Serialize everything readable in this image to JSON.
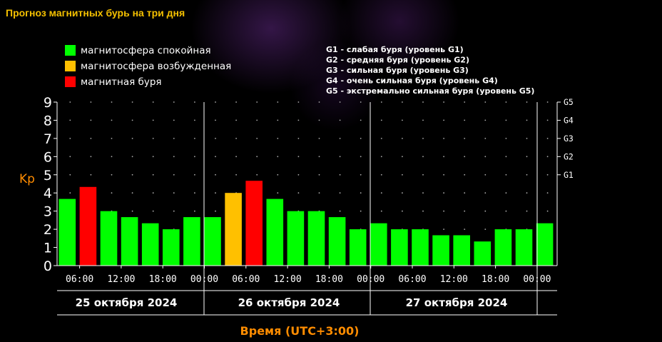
{
  "page": {
    "title": "Прогноз магнитных бурь на три дня"
  },
  "colors": {
    "calm": "#00ff00",
    "excited": "#ffc000",
    "storm": "#ff0000",
    "axis": "#ffffff",
    "accent": "#ff8c00"
  },
  "legend": {
    "items": [
      {
        "label": "магнитосфера спокойная",
        "color": "#00ff00"
      },
      {
        "label": "магнитосфера возбужденная",
        "color": "#ffc000"
      },
      {
        "label": "магнитная буря",
        "color": "#ff0000"
      }
    ],
    "g_levels": [
      "G1 - слабая буря (уровень G1)",
      "G2 - средняя буря (уровень G2)",
      "G3 - сильная буря (уровень G3)",
      "G4 - очень сильная буря (уровень G4)",
      "G5 - экстремально сильная буря (уровень G5)"
    ]
  },
  "chart_data": {
    "type": "bar",
    "ylabel": "Kp",
    "xlabel": "Время (UTC+3:00)",
    "ylim": [
      0,
      9
    ],
    "yticks": [
      "0",
      "1",
      "2",
      "3",
      "4",
      "5",
      "6",
      "7",
      "8",
      "9"
    ],
    "g_scale": [
      {
        "label": "G1",
        "value": 5
      },
      {
        "label": "G2",
        "value": 6
      },
      {
        "label": "G3",
        "value": 7
      },
      {
        "label": "G4",
        "value": 8
      },
      {
        "label": "G5",
        "value": 9
      }
    ],
    "days": [
      "25 октября 2024",
      "26 октября 2024",
      "27 октября 2024"
    ],
    "time_ticks": [
      "06:00",
      "12:00",
      "18:00",
      "00:00",
      "06:00",
      "12:00",
      "18:00",
      "00:00",
      "06:00",
      "12:00",
      "18:00",
      "00:00"
    ],
    "values": [
      3.67,
      4.33,
      3.0,
      2.67,
      2.33,
      2.0,
      2.67,
      2.67,
      4.0,
      4.67,
      3.67,
      3.0,
      3.0,
      2.67,
      2.0,
      2.33,
      2.0,
      2.0,
      1.67,
      1.67,
      1.33,
      2.0,
      2.0,
      2.33
    ],
    "levels": [
      "calm",
      "storm",
      "calm",
      "calm",
      "calm",
      "calm",
      "calm",
      "calm",
      "excited",
      "storm",
      "calm",
      "calm",
      "calm",
      "calm",
      "calm",
      "calm",
      "calm",
      "calm",
      "calm",
      "calm",
      "calm",
      "calm",
      "calm",
      "calm"
    ],
    "grid": true,
    "legend_position": "top-left"
  }
}
